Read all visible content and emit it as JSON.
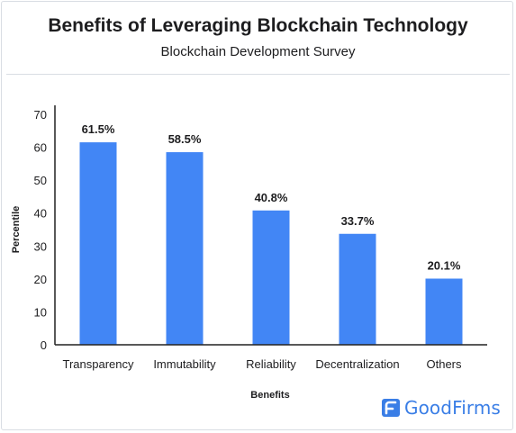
{
  "title": "Benefits of Leveraging Blockchain Technology",
  "subtitle": "Blockchain Development Survey",
  "brand": {
    "name": "GoodFirms",
    "icon": "goodfirms-logo-icon",
    "color": "#3a7ee6"
  },
  "chart_data": {
    "type": "bar",
    "categories": [
      "Transparency",
      "Immutability",
      "Reliability",
      "Decentralization",
      "Others"
    ],
    "values": [
      61.5,
      58.5,
      40.8,
      33.7,
      20.1
    ],
    "data_labels": [
      "61.5%",
      "58.5%",
      "40.8%",
      "33.7%",
      "20.1%"
    ],
    "xlabel": "Benefits",
    "ylabel": "Percentile",
    "ylim": [
      0,
      70
    ],
    "yticks": [
      0,
      10,
      20,
      30,
      40,
      50,
      60,
      70
    ],
    "grid": false,
    "bar_color": "#4286f5"
  }
}
